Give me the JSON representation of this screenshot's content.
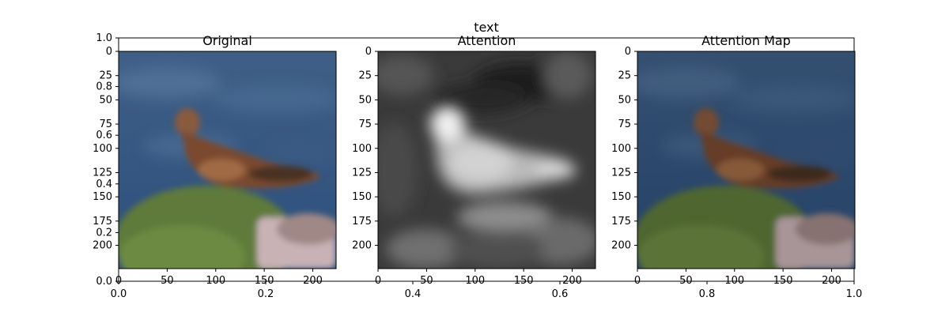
{
  "figure": {
    "suptitle": "text",
    "background": "#ffffff",
    "axis_color": "#000000"
  },
  "chart_data": [
    {
      "type": "heatmap",
      "role": "background-axes",
      "title": "",
      "x_ticks": [
        "0.0",
        "0.2",
        "0.4",
        "0.6",
        "0.8",
        "1.0"
      ],
      "y_ticks": [
        "0.0",
        "0.2",
        "0.4",
        "0.6",
        "0.8",
        "1.0"
      ],
      "xlim": [
        0,
        1
      ],
      "ylim": [
        0,
        1
      ]
    },
    {
      "type": "heatmap",
      "title": "Original",
      "content": "color photo of a bird of prey perched on a mossy rock in front of blue water",
      "x_ticks": [
        "0",
        "50",
        "100",
        "150",
        "200"
      ],
      "y_ticks": [
        "0",
        "25",
        "50",
        "75",
        "100",
        "125",
        "150",
        "175",
        "200"
      ],
      "xlim": [
        0,
        224
      ],
      "ylim": [
        224,
        0
      ]
    },
    {
      "type": "heatmap",
      "title": "Attention",
      "colormap": "gray",
      "content": "grayscale attention map, bright region over the bird",
      "x_ticks": [
        "0",
        "50",
        "100",
        "150",
        "200"
      ],
      "y_ticks": [
        "0",
        "25",
        "50",
        "75",
        "100",
        "125",
        "150",
        "175",
        "200"
      ],
      "xlim": [
        0,
        224
      ],
      "ylim": [
        224,
        0
      ]
    },
    {
      "type": "heatmap",
      "title": "Attention Map",
      "content": "photo overlaid with attention, slightly darkened",
      "x_ticks": [
        "0",
        "50",
        "100",
        "150",
        "200"
      ],
      "y_ticks": [
        "0",
        "25",
        "50",
        "75",
        "100",
        "125",
        "150",
        "175",
        "200"
      ],
      "xlim": [
        0,
        224
      ],
      "ylim": [
        224,
        0
      ]
    }
  ]
}
